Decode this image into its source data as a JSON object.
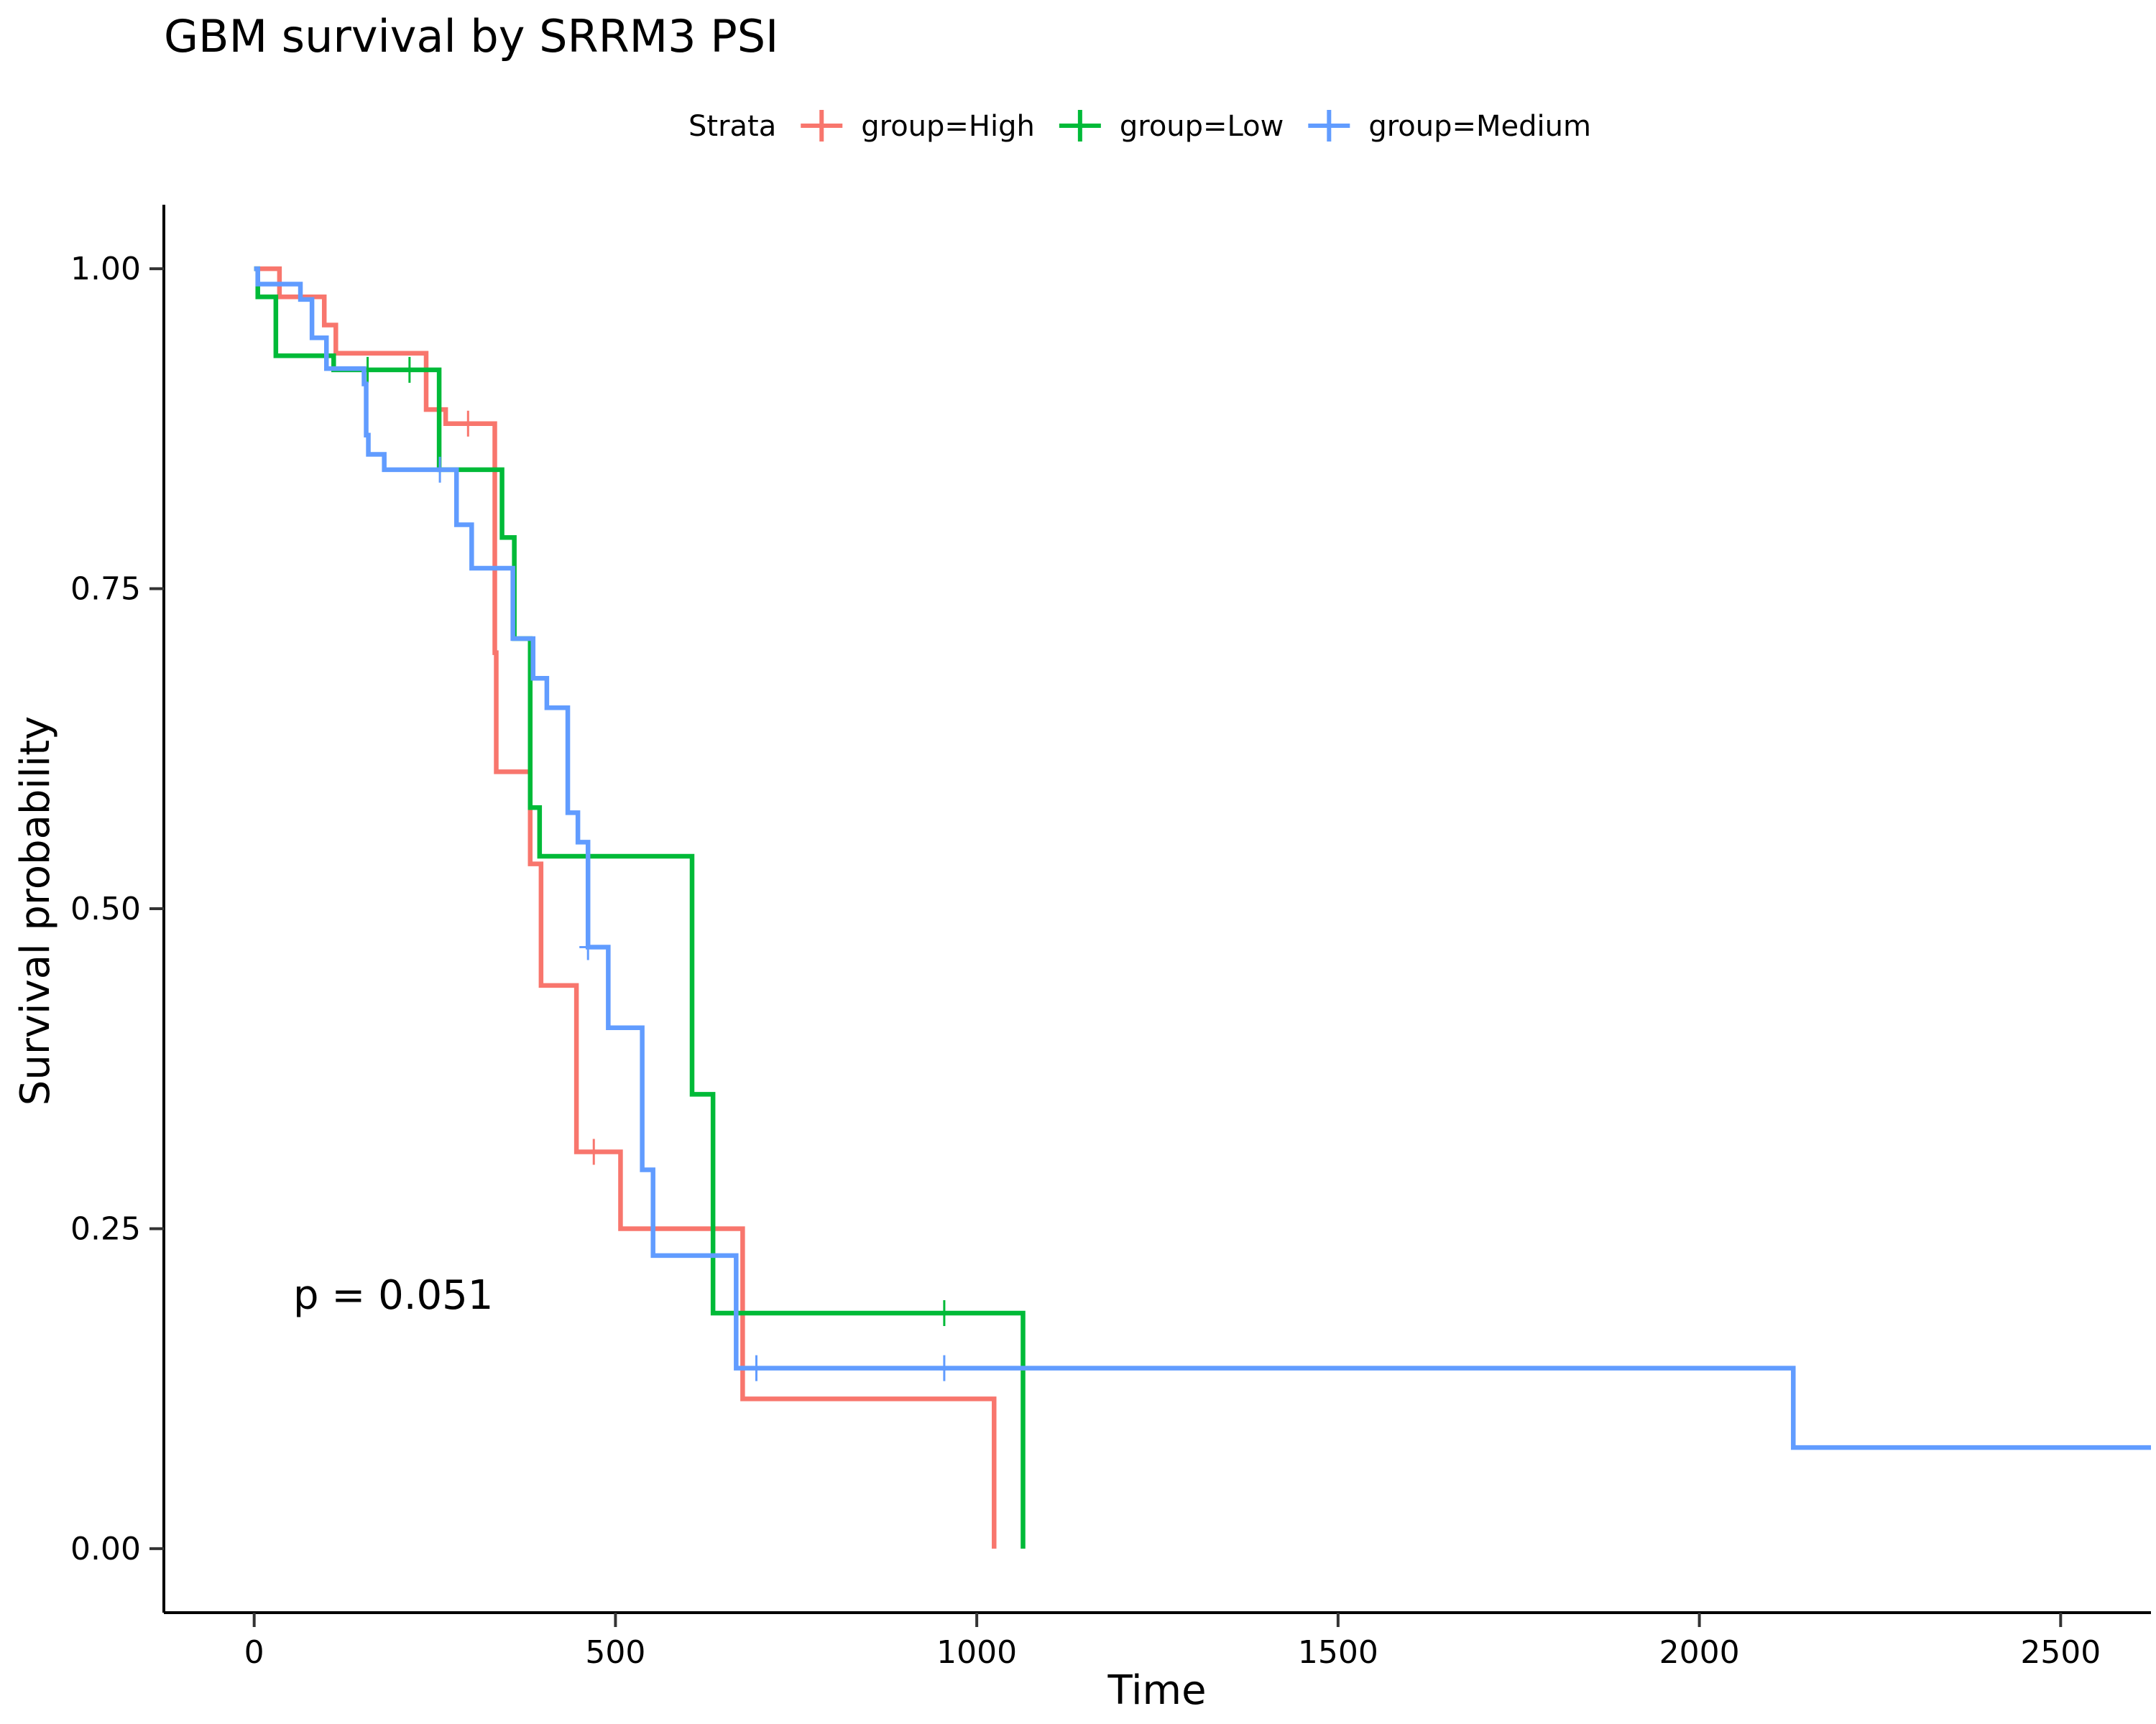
{
  "chart_data": {
    "type": "line",
    "subtype": "kaplan-meier step",
    "title": "GBM survival by SRRM3 PSI",
    "xlabel": "Time",
    "ylabel": "Survival probability",
    "xlim": [
      -125,
      2625
    ],
    "ylim": [
      -0.05,
      1.05
    ],
    "xticks": [
      0,
      500,
      1000,
      1500,
      2000,
      2500
    ],
    "xtick_labels": [
      "0",
      "500",
      "1000",
      "1500",
      "2000",
      "2500"
    ],
    "yticks": [
      0,
      0.25,
      0.5,
      0.75,
      1
    ],
    "ytick_labels": [
      "0.00",
      "0.25",
      "0.50",
      "0.75",
      "1.00"
    ],
    "grid": false,
    "legend": {
      "title": "Strata",
      "position": "top"
    },
    "annotation": {
      "text": "p = 0.051",
      "x": 50,
      "y": 0.2
    },
    "series": [
      {
        "name": "group=High",
        "color": "#F8766D",
        "steps": [
          [
            0,
            1.0
          ],
          [
            35,
            0.978
          ],
          [
            97,
            0.956
          ],
          [
            113,
            0.934
          ],
          [
            238,
            0.89
          ],
          [
            265,
            0.879
          ],
          [
            333,
            0.7
          ],
          [
            335,
            0.607
          ],
          [
            382,
            0.535
          ],
          [
            397,
            0.44
          ],
          [
            446,
            0.31
          ],
          [
            507,
            0.25
          ],
          [
            676,
            0.117
          ],
          [
            1024,
            0.0
          ]
        ],
        "censored": [
          [
            296,
            0.879
          ],
          [
            470,
            0.31
          ]
        ]
      },
      {
        "name": "group=Low",
        "color": "#00BA38",
        "steps": [
          [
            0,
            1.0
          ],
          [
            5,
            0.978
          ],
          [
            30,
            0.932
          ],
          [
            110,
            0.921
          ],
          [
            256,
            0.843
          ],
          [
            343,
            0.79
          ],
          [
            360,
            0.711
          ],
          [
            382,
            0.579
          ],
          [
            395,
            0.541
          ],
          [
            606,
            0.355
          ],
          [
            635,
            0.184
          ],
          [
            1064,
            0.0
          ]
        ],
        "censored": [
          [
            157,
            0.921
          ],
          [
            215,
            0.921
          ],
          [
            955,
            0.184
          ]
        ]
      },
      {
        "name": "group=Medium",
        "color": "#619CFF",
        "steps": [
          [
            0,
            1.0
          ],
          [
            5,
            0.988
          ],
          [
            64,
            0.976
          ],
          [
            80,
            0.946
          ],
          [
            100,
            0.922
          ],
          [
            152,
            0.91
          ],
          [
            155,
            0.87
          ],
          [
            158,
            0.855
          ],
          [
            180,
            0.843
          ],
          [
            280,
            0.8
          ],
          [
            301,
            0.766
          ],
          [
            358,
            0.711
          ],
          [
            386,
            0.68
          ],
          [
            405,
            0.657
          ],
          [
            434,
            0.575
          ],
          [
            448,
            0.552
          ],
          [
            462,
            0.47
          ],
          [
            490,
            0.407
          ],
          [
            537,
            0.296
          ],
          [
            552,
            0.229
          ],
          [
            667,
            0.141
          ],
          [
            2130,
            0.079
          ],
          [
            2625,
            0.079
          ]
        ],
        "censored": [
          [
            257,
            0.843
          ],
          [
            462,
            0.47
          ],
          [
            695,
            0.141
          ],
          [
            955,
            0.141
          ]
        ]
      }
    ]
  }
}
